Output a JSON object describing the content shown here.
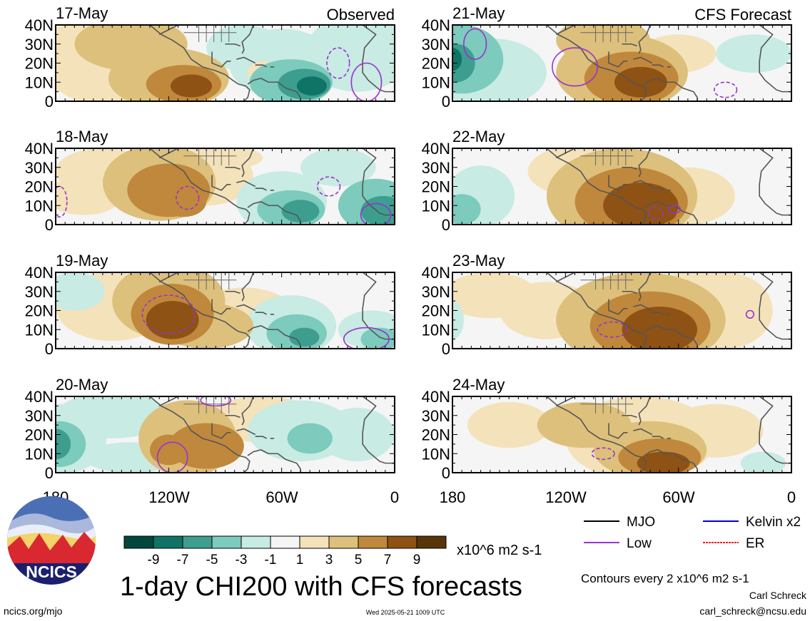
{
  "figure": {
    "title": "1-day CHI200 with CFS forecasts",
    "label_observed": "Observed",
    "label_forecast": "CFS Forecast",
    "units": "x10^6 m2 s-1",
    "contours_note": "Contours every 2 x10^6 m2 s-1",
    "author": "Carl Schreck",
    "email": "carl_schreck@ncsu.edu",
    "url": "ncics.org/mjo",
    "timestamp": "Wed 2025-05-21 1009 UTC",
    "logo_text": "NCICS"
  },
  "chart_data": {
    "type": "heatmap",
    "variable": "1-day CHI200",
    "y_ticks": [
      "40N",
      "30N",
      "20N",
      "10N",
      "0"
    ],
    "x_ticks": [
      "180",
      "120W",
      "60W",
      "0"
    ],
    "colorbar": {
      "levels": [
        "-9",
        "-7",
        "-5",
        "-3",
        "-1",
        "1",
        "3",
        "5",
        "7",
        "9"
      ],
      "colors": [
        "#01473c",
        "#0f7466",
        "#3d9e8f",
        "#7ccbbd",
        "#c8ebe4",
        "#f5f5f5",
        "#f4e2ba",
        "#ddc07b",
        "#c0883c",
        "#8e5214",
        "#583508"
      ]
    },
    "legend": [
      {
        "name": "MJO",
        "color": "#000000"
      },
      {
        "name": "Kelvin x2",
        "color": "#0000cd"
      },
      {
        "name": "Low",
        "color": "#9a32cd"
      },
      {
        "name": "ER",
        "color": "#ee2020"
      }
    ],
    "panels": [
      {
        "date": "17-May",
        "source": "Observed"
      },
      {
        "date": "18-May",
        "source": "Observed"
      },
      {
        "date": "19-May",
        "source": "Observed"
      },
      {
        "date": "20-May",
        "source": "Observed"
      },
      {
        "date": "21-May",
        "source": "CFS Forecast"
      },
      {
        "date": "22-May",
        "source": "CFS Forecast"
      },
      {
        "date": "23-May",
        "source": "CFS Forecast"
      },
      {
        "date": "24-May",
        "source": "CFS Forecast"
      }
    ]
  }
}
